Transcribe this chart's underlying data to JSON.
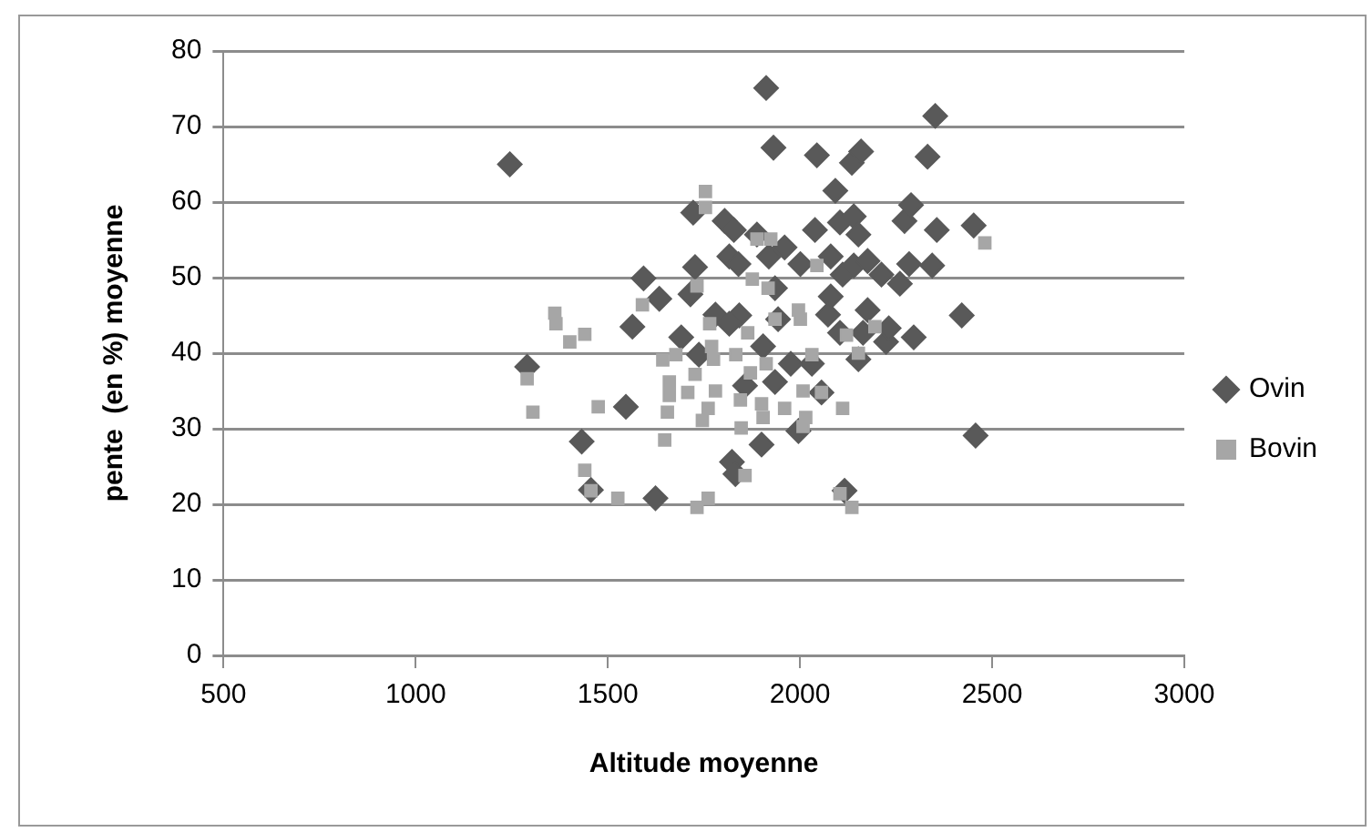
{
  "chart_data": {
    "type": "scatter",
    "xlabel": "Altitude moyenne",
    "ylabel": "pente  (en %) moyenne",
    "xlim": [
      500,
      3000
    ],
    "xticks": [
      500,
      1000,
      1500,
      2000,
      2500,
      3000
    ],
    "ylim": [
      0,
      80
    ],
    "yticks": [
      0,
      10,
      20,
      30,
      40,
      50,
      60,
      70,
      80
    ],
    "grid": "y",
    "legend": "right",
    "series": [
      {
        "name": "Ovin",
        "color": "#595959",
        "marker": "diamond",
        "x": [
          1245,
          1290,
          1432,
          1456,
          1564,
          1547,
          1593,
          1634,
          1624,
          1691,
          1722,
          1727,
          1715,
          1737,
          1780,
          1804,
          1828,
          1816,
          1840,
          1842,
          1816,
          1823,
          1832,
          1857,
          1888,
          1912,
          1931,
          1919,
          1935,
          1943,
          1900,
          1904,
          1935,
          1960,
          1976,
          1996,
          2001,
          2044,
          2039,
          2031,
          2056,
          2092,
          2080,
          2080,
          2073,
          2104,
          2111,
          2104,
          2116,
          2135,
          2159,
          2140,
          2152,
          2140,
          2176,
          2152,
          2176,
          2164,
          2212,
          2224,
          2231,
          2260,
          2272,
          2289,
          2284,
          2296,
          2332,
          2352,
          2356,
          2344,
          2421,
          2452,
          2457
        ],
        "values": [
          65.0,
          38.2,
          28.3,
          21.9,
          43.5,
          32.9,
          49.9,
          47.2,
          20.8,
          42.1,
          58.6,
          51.4,
          47.8,
          39.8,
          45.1,
          57.5,
          56.3,
          52.8,
          51.8,
          45.0,
          43.9,
          25.6,
          24.0,
          35.7,
          55.7,
          75.1,
          67.2,
          52.8,
          48.6,
          44.5,
          27.9,
          40.9,
          36.2,
          54.0,
          38.6,
          29.7,
          51.8,
          66.2,
          56.3,
          38.6,
          34.8,
          61.5,
          52.8,
          47.5,
          45.1,
          57.3,
          50.4,
          42.7,
          21.8,
          65.2,
          66.7,
          58.1,
          55.7,
          51.6,
          52.2,
          39.2,
          45.7,
          42.7,
          50.4,
          41.5,
          43.3,
          49.2,
          57.5,
          59.6,
          51.8,
          42.1,
          66.0,
          71.4,
          56.3,
          51.6,
          45.0,
          56.9,
          29.1
        ]
      },
      {
        "name": "Bovin",
        "color": "#a6a6a6",
        "marker": "square",
        "x": [
          1290,
          1305,
          1362,
          1365,
          1401,
          1440,
          1440,
          1456,
          1475,
          1526,
          1590,
          1643,
          1648,
          1655,
          1660,
          1660,
          1677,
          1708,
          1727,
          1732,
          1732,
          1746,
          1754,
          1754,
          1761,
          1761,
          1765,
          1770,
          1775,
          1780,
          1833,
          1845,
          1847,
          1857,
          1864,
          1871,
          1876,
          1888,
          1900,
          1904,
          1912,
          1917,
          1924,
          1935,
          1960,
          1996,
          2001,
          2008,
          2008,
          2015,
          2031,
          2044,
          2056,
          2104,
          2111,
          2121,
          2135,
          2152,
          2195,
          2481
        ],
        "values": [
          36.6,
          32.2,
          45.3,
          43.9,
          41.5,
          42.5,
          24.5,
          21.8,
          32.9,
          20.8,
          46.4,
          39.1,
          28.5,
          32.2,
          34.4,
          36.2,
          39.8,
          34.8,
          37.2,
          48.9,
          19.6,
          31.1,
          61.4,
          59.3,
          20.8,
          32.7,
          43.9,
          40.9,
          39.2,
          35.0,
          39.8,
          33.8,
          30.1,
          23.8,
          42.7,
          37.4,
          49.8,
          55.1,
          33.3,
          31.5,
          38.6,
          48.6,
          55.1,
          44.5,
          32.7,
          45.7,
          44.5,
          35.0,
          30.3,
          31.5,
          39.8,
          51.6,
          34.8,
          21.4,
          32.7,
          42.4,
          19.6,
          40.0,
          43.5,
          54.6
        ]
      }
    ]
  }
}
